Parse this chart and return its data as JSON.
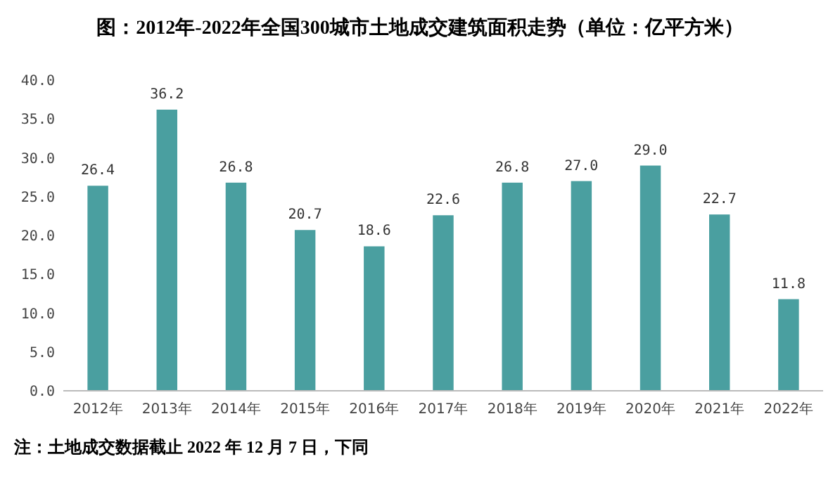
{
  "chart_data": {
    "type": "bar",
    "title": "图：2012年-2022年全国300城市土地成交建筑面积走势（单位：亿平方米）",
    "categories": [
      "2012年",
      "2013年",
      "2014年",
      "2015年",
      "2016年",
      "2017年",
      "2018年",
      "2019年",
      "2020年",
      "2021年",
      "2022年"
    ],
    "values": [
      26.4,
      36.2,
      26.8,
      20.7,
      18.6,
      22.6,
      26.8,
      27.0,
      29.0,
      22.7,
      11.8
    ],
    "color": "#4a9fa0",
    "data_labels": true,
    "value_labels": [
      "26.4",
      "36.2",
      "26.8",
      "20.7",
      "18.6",
      "22.6",
      "26.8",
      "27.0",
      "29.0",
      "22.7",
      "11.8"
    ],
    "ylim": [
      0,
      40
    ],
    "yticks": [
      {
        "value": 0,
        "label": "0.0"
      },
      {
        "value": 5,
        "label": "5.0"
      },
      {
        "value": 10,
        "label": "10.0"
      },
      {
        "value": 15,
        "label": "15.0"
      },
      {
        "value": 20,
        "label": "20.0"
      },
      {
        "value": 25,
        "label": "25.0"
      },
      {
        "value": 30,
        "label": "30.0"
      },
      {
        "value": 35,
        "label": "35.0"
      },
      {
        "value": 40,
        "label": "40.0"
      }
    ],
    "annotations": [
      "注：土地成交数据截止 2022 年 12 月 7 日，下同"
    ]
  }
}
